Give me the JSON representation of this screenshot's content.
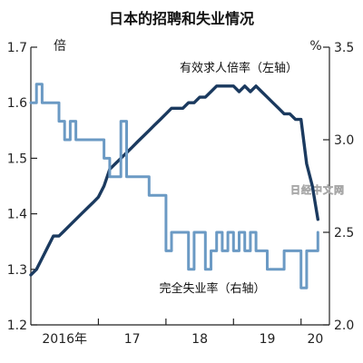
{
  "chart_data": {
    "type": "line",
    "title": "日本的招聘和失业情况",
    "left_axis": {
      "unit": "倍",
      "ylim": [
        1.2,
        1.7
      ],
      "ticks": [
        1.2,
        1.3,
        1.4,
        1.5,
        1.6,
        1.7
      ],
      "tick_labels": [
        "1.2",
        "1.3",
        "1.4",
        "1.5",
        "1.6",
        "1.7"
      ]
    },
    "right_axis": {
      "unit": "%",
      "ylim": [
        2.0,
        3.5
      ],
      "ticks": [
        2.0,
        2.5,
        3.0,
        3.5
      ],
      "tick_labels": [
        "2.0",
        "2.5",
        "3.0",
        "3.5"
      ]
    },
    "x_axis": {
      "year_labels": [
        "2016年",
        "17",
        "18",
        "19",
        "20"
      ],
      "year_values": [
        2016,
        2017,
        2018,
        2019,
        2020
      ],
      "xlim": [
        2016,
        2020.42
      ],
      "grid": false
    },
    "watermark": "日经中文网",
    "series": [
      {
        "name": "有效求人倍率（左轴）",
        "axis": "left",
        "color": "#1b3a5f",
        "x": [
          2016.0,
          2016.083,
          2016.167,
          2016.25,
          2016.333,
          2016.417,
          2016.5,
          2016.583,
          2016.667,
          2016.75,
          2016.833,
          2016.917,
          2017.0,
          2017.083,
          2017.167,
          2017.25,
          2017.333,
          2017.417,
          2017.5,
          2017.583,
          2017.667,
          2017.75,
          2017.833,
          2017.917,
          2018.0,
          2018.083,
          2018.167,
          2018.25,
          2018.333,
          2018.417,
          2018.5,
          2018.583,
          2018.667,
          2018.75,
          2018.833,
          2018.917,
          2019.0,
          2019.083,
          2019.167,
          2019.25,
          2019.333,
          2019.417,
          2019.5,
          2019.583,
          2019.667,
          2019.75,
          2019.833,
          2019.917,
          2020.0,
          2020.083,
          2020.167,
          2020.25
        ],
        "values": [
          1.29,
          1.3,
          1.32,
          1.34,
          1.36,
          1.36,
          1.37,
          1.38,
          1.39,
          1.4,
          1.41,
          1.42,
          1.43,
          1.45,
          1.48,
          1.49,
          1.5,
          1.51,
          1.52,
          1.53,
          1.54,
          1.55,
          1.56,
          1.57,
          1.58,
          1.59,
          1.59,
          1.59,
          1.6,
          1.6,
          1.61,
          1.61,
          1.62,
          1.63,
          1.63,
          1.63,
          1.63,
          1.62,
          1.63,
          1.62,
          1.63,
          1.62,
          1.61,
          1.6,
          1.59,
          1.58,
          1.58,
          1.57,
          1.57,
          1.49,
          1.45,
          1.39
        ]
      },
      {
        "name": "完全失业率（右轴）",
        "axis": "right",
        "color": "#6b9ac4",
        "x": [
          2016.0,
          2016.083,
          2016.167,
          2016.25,
          2016.333,
          2016.417,
          2016.5,
          2016.583,
          2016.667,
          2016.75,
          2016.833,
          2016.917,
          2017.0,
          2017.083,
          2017.167,
          2017.25,
          2017.333,
          2017.417,
          2017.5,
          2017.583,
          2017.667,
          2017.75,
          2017.833,
          2017.917,
          2018.0,
          2018.083,
          2018.167,
          2018.25,
          2018.333,
          2018.417,
          2018.5,
          2018.583,
          2018.667,
          2018.75,
          2018.833,
          2018.917,
          2019.0,
          2019.083,
          2019.167,
          2019.25,
          2019.333,
          2019.417,
          2019.5,
          2019.583,
          2019.667,
          2019.75,
          2019.833,
          2019.917,
          2020.0,
          2020.083,
          2020.167,
          2020.25
        ],
        "values": [
          3.2,
          3.3,
          3.2,
          3.2,
          3.2,
          3.1,
          3.0,
          3.1,
          3.0,
          3.0,
          3.0,
          3.0,
          3.0,
          2.9,
          2.8,
          2.8,
          3.1,
          2.8,
          2.8,
          2.8,
          2.8,
          2.7,
          2.7,
          2.7,
          2.4,
          2.5,
          2.5,
          2.5,
          2.3,
          2.5,
          2.5,
          2.3,
          2.4,
          2.5,
          2.4,
          2.5,
          2.4,
          2.5,
          2.4,
          2.5,
          2.4,
          2.4,
          2.3,
          2.3,
          2.3,
          2.4,
          2.4,
          2.4,
          2.2,
          2.4,
          2.4,
          2.5
        ]
      }
    ]
  }
}
